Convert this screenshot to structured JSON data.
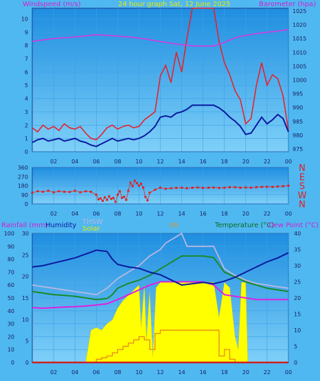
{
  "colors": {
    "bg": "#4fb8f0",
    "plot_top": "#1f8ee0",
    "plot_bottom": "#7ed0f8",
    "grid": "#3aa0e8",
    "axis_text": "#1a1a60",
    "wind_gust": "#e8202c",
    "wind_avg": "#0a1aa0",
    "barometer": "#d838e0",
    "direction": "#e02020",
    "humidity": "#0a1aa0",
    "thsw": "#b8b8e0",
    "solar": "#ffff00",
    "uv": "#e89018",
    "temperature": "#1a8a28",
    "dew_point": "#e020e0",
    "rain": "#d02020",
    "title_yellow": "#e8e800"
  },
  "chart_data": [
    {
      "type": "line",
      "title": "24 hour graph Sat, 12 June 2025",
      "left_label": "Windspeed (m/s)",
      "right_label": "Barometer (hpa)",
      "x_ticks": [
        "02",
        "04",
        "06",
        "08",
        "10",
        "12",
        "14",
        "16",
        "18",
        "20",
        "22",
        "00"
      ],
      "left_ticks": [
        "0",
        "1",
        "2",
        "3",
        "4",
        "5",
        "6",
        "7",
        "8",
        "9",
        "10"
      ],
      "right_ticks": [
        "975",
        "980",
        "985",
        "990",
        "995",
        "1000",
        "1005",
        "1010",
        "1015",
        "1020",
        "1025"
      ],
      "ylim_left": [
        0,
        10.8
      ],
      "ylim_right": [
        974,
        1026
      ],
      "xlim": [
        0,
        24
      ],
      "series": [
        {
          "role": "gust",
          "x": [
            0,
            0.5,
            1,
            1.5,
            2,
            2.5,
            3,
            3.5,
            4,
            4.5,
            5,
            5.5,
            6,
            6.5,
            7,
            7.5,
            8,
            8.5,
            9,
            9.5,
            10,
            10.5,
            11,
            11.5,
            12,
            12.5,
            13,
            13.5,
            14,
            14.5,
            15,
            15.5,
            16,
            16.5,
            17,
            17.5,
            18,
            18.5,
            19,
            19.5,
            20,
            20.5,
            21,
            21.5,
            22,
            22.5,
            23,
            23.5,
            24
          ],
          "y": [
            1.8,
            1.5,
            2,
            1.7,
            1.9,
            1.6,
            2.1,
            1.8,
            1.7,
            1.9,
            1.4,
            1,
            0.9,
            1.3,
            1.8,
            2,
            1.7,
            1.9,
            2,
            1.8,
            1.9,
            2.4,
            2.7,
            3,
            5.7,
            6.5,
            5.2,
            7.5,
            6,
            8.6,
            10.8,
            10.8,
            10.8,
            10.8,
            10.8,
            8.3,
            6.7,
            5.8,
            4.6,
            3.9,
            2.1,
            2.5,
            5,
            6.7,
            5,
            5.8,
            5.5,
            4.2,
            1.6
          ]
        },
        {
          "role": "average",
          "x": [
            0,
            0.5,
            1,
            1.5,
            2,
            2.5,
            3,
            3.5,
            4,
            4.5,
            5,
            5.5,
            6,
            6.5,
            7,
            7.5,
            8,
            8.5,
            9,
            9.5,
            10,
            10.5,
            11,
            11.5,
            12,
            12.5,
            13,
            13.5,
            14,
            14.5,
            15,
            15.5,
            16,
            16.5,
            17,
            17.5,
            18,
            18.5,
            19,
            19.5,
            20,
            20.5,
            21,
            21.5,
            22,
            22.5,
            23,
            23.5,
            24
          ],
          "y": [
            0.7,
            0.9,
            1,
            0.8,
            0.9,
            1,
            0.8,
            0.9,
            1,
            0.8,
            0.7,
            0.5,
            0.4,
            0.6,
            0.8,
            1,
            0.8,
            0.9,
            1,
            0.9,
            1,
            1.2,
            1.5,
            1.9,
            2.6,
            2.7,
            2.6,
            2.9,
            3,
            3.2,
            3.5,
            3.5,
            3.5,
            3.5,
            3.5,
            3.3,
            3,
            2.6,
            2.3,
            1.9,
            1.3,
            1.4,
            2,
            2.6,
            2.1,
            2.4,
            2.8,
            2.5,
            1.5
          ]
        },
        {
          "role": "barometer",
          "x": [
            0,
            1,
            2,
            3,
            4,
            5,
            6,
            7,
            8,
            9,
            10,
            11,
            12,
            13,
            14,
            15,
            16,
            17,
            18,
            19,
            20,
            21,
            22,
            23,
            24
          ],
          "y": [
            1014,
            1014.5,
            1015,
            1015.3,
            1015.6,
            1016,
            1016.4,
            1016.2,
            1015.9,
            1015.6,
            1015.2,
            1014.6,
            1013.9,
            1013.3,
            1012.8,
            1012.4,
            1012.3,
            1012.3,
            1013.6,
            1015.3,
            1016.2,
            1016.8,
            1017.3,
            1017.7,
            1018.3
          ]
        }
      ]
    },
    {
      "type": "scatter",
      "left_ticks": [
        "0",
        "90",
        "180",
        "270",
        "360"
      ],
      "right_ticks": [
        "N",
        "W",
        "S",
        "E",
        "N"
      ],
      "ylim": [
        0,
        360
      ],
      "xlim": [
        0,
        24
      ],
      "direction_x": [
        0,
        0.5,
        1,
        1.5,
        2,
        2.5,
        3,
        3.5,
        4,
        4.5,
        5,
        5.5,
        6,
        6.2,
        6.4,
        6.6,
        6.8,
        7,
        7.2,
        7.4,
        7.6,
        7.8,
        8,
        8.2,
        8.4,
        8.6,
        8.8,
        9,
        9.2,
        9.4,
        9.6,
        9.8,
        10,
        10.2,
        10.4,
        10.6,
        10.8,
        11,
        11.5,
        12,
        12.5,
        13,
        13.5,
        14,
        14.5,
        15,
        15.5,
        16,
        16.5,
        17,
        17.5,
        18,
        18.5,
        19,
        19.5,
        20,
        20.5,
        21,
        21.5,
        22,
        22.5,
        23,
        23.5,
        24
      ],
      "direction_y": [
        110,
        125,
        120,
        130,
        115,
        125,
        120,
        118,
        130,
        115,
        125,
        120,
        90,
        45,
        55,
        30,
        65,
        40,
        75,
        50,
        60,
        20,
        90,
        125,
        60,
        70,
        40,
        130,
        210,
        175,
        230,
        205,
        180,
        200,
        160,
        70,
        35,
        110,
        140,
        160,
        150,
        155,
        158,
        160,
        155,
        160,
        162,
        158,
        160,
        162,
        158,
        160,
        165,
        165,
        160,
        162,
        160,
        165,
        168,
        170,
        168,
        172,
        175,
        180
      ]
    },
    {
      "type": "line",
      "labels": {
        "rainfall": "Rainfall (mm)",
        "humidity": "Humidity",
        "thsw": "THSW",
        "solar": "Solar",
        "uv": "UV",
        "temperature": "Temperature (°C)",
        "dew_point": "Dew Point (°C)"
      },
      "x_ticks": [
        "02",
        "04",
        "06",
        "08",
        "10",
        "12",
        "14",
        "16",
        "18",
        "20",
        "22",
        "00"
      ],
      "humidity_ticks": [
        "0",
        "10",
        "20",
        "30",
        "40",
        "50",
        "60",
        "70",
        "80",
        "90",
        "100"
      ],
      "rain_ticks": [
        "0",
        "5",
        "10",
        "15",
        "20",
        "25",
        "30"
      ],
      "temp_ticks": [
        "0",
        "5",
        "10",
        "15",
        "20",
        "25",
        "30",
        "35",
        "40"
      ],
      "ylim_humidity": [
        0,
        100
      ],
      "ylim_rain": [
        0,
        30
      ],
      "ylim_temp": [
        0,
        40
      ],
      "xlim": [
        0,
        24
      ],
      "series": [
        {
          "role": "humidity",
          "x": [
            0,
            1,
            2,
            3,
            4,
            5,
            6,
            7,
            7.5,
            8,
            9,
            10,
            11,
            12,
            13,
            14,
            15,
            16,
            17,
            18,
            19,
            20,
            21,
            22,
            23,
            24
          ],
          "y": [
            74,
            75,
            77,
            79,
            81,
            84,
            87,
            86,
            80,
            76,
            74,
            73,
            70,
            68,
            64,
            60,
            61,
            62,
            61,
            63,
            66,
            70,
            74,
            78,
            81,
            85
          ]
        },
        {
          "role": "temperature",
          "x": [
            0,
            1,
            2,
            3,
            4,
            5,
            6,
            7,
            7.5,
            8,
            9,
            10,
            11,
            12,
            13,
            14,
            15,
            16,
            17,
            18,
            19,
            20,
            21,
            22,
            23,
            24
          ],
          "y": [
            22,
            21.5,
            21,
            20.8,
            20.5,
            20,
            19.5,
            19.8,
            21,
            23,
            24.5,
            25.5,
            27,
            29,
            31,
            33,
            33,
            33,
            32.5,
            28,
            26.5,
            25,
            24,
            23,
            22.5,
            22
          ]
        },
        {
          "role": "dew_point",
          "x": [
            0,
            1,
            2,
            3,
            4,
            5,
            6,
            7,
            8,
            9,
            10,
            11,
            12,
            13,
            14,
            15,
            16,
            17,
            18,
            19,
            20,
            21,
            22,
            23,
            24
          ],
          "y": [
            17,
            16.8,
            17,
            17.2,
            17.3,
            17.5,
            17.8,
            18.2,
            19.5,
            21,
            22.5,
            24,
            25,
            25,
            25,
            25,
            25,
            24,
            21,
            20.5,
            20,
            19.5,
            19.5,
            19.5,
            19.5
          ]
        },
        {
          "role": "thsw",
          "x": [
            0,
            1,
            2,
            3,
            4,
            5,
            6,
            7,
            8,
            9,
            10,
            11,
            12,
            12.5,
            13,
            13.5,
            14,
            14.5,
            15,
            16,
            17,
            18,
            19,
            20,
            21,
            22,
            23,
            24
          ],
          "y": [
            24,
            23.5,
            23,
            22.5,
            22,
            21.5,
            21,
            23,
            26,
            28,
            30,
            33,
            35,
            37,
            38,
            39,
            40,
            36,
            36,
            36,
            36,
            29,
            27,
            25.5,
            24.5,
            24,
            23.5,
            23
          ]
        },
        {
          "role": "solar",
          "x": [
            5,
            5.5,
            6,
            6.5,
            7,
            7.5,
            8,
            8.5,
            9,
            9.5,
            10,
            10.2,
            10.5,
            10.7,
            11,
            11.3,
            11.6,
            12,
            12.5,
            13,
            13.5,
            14,
            15,
            16,
            17,
            17.5,
            18,
            18.5,
            19,
            19.3,
            19.6,
            20,
            20.2
          ],
          "y": [
            0,
            25,
            27,
            25,
            30,
            33,
            42,
            48,
            52,
            56,
            60,
            28,
            60,
            18,
            55,
            5,
            58,
            62,
            62,
            62,
            62,
            62,
            62,
            62,
            62,
            35,
            62,
            58,
            20,
            10,
            62,
            62,
            0
          ]
        },
        {
          "role": "uv",
          "x": [
            5,
            5.5,
            6,
            6.5,
            7,
            7.5,
            8,
            8.5,
            9,
            9.5,
            10,
            10.5,
            11,
            11.5,
            12,
            12.5,
            13,
            13.5,
            14,
            14.5,
            15,
            15.5,
            16,
            16.5,
            17,
            17.5,
            18,
            18.5,
            19,
            19.5,
            20
          ],
          "y": [
            0,
            0,
            1,
            1.5,
            2,
            3,
            4,
            5,
            6,
            7,
            8,
            7,
            4,
            9,
            10,
            10,
            10,
            10,
            10,
            10,
            10,
            10,
            10,
            10,
            10,
            2,
            4,
            1,
            0,
            0,
            0
          ]
        },
        {
          "role": "rain",
          "x": [
            0,
            24
          ],
          "y": [
            0,
            0
          ]
        }
      ]
    }
  ]
}
